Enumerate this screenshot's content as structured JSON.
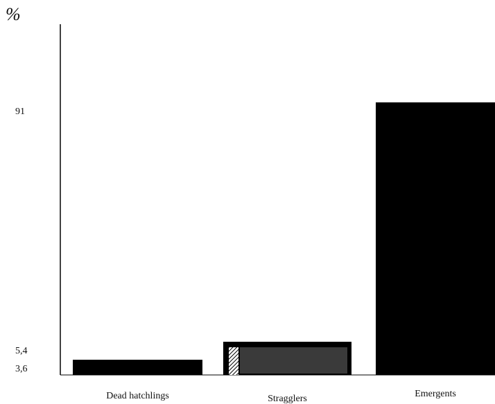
{
  "chart_data": {
    "type": "bar",
    "unit_label": "%",
    "categories": [
      "Dead hatchlings",
      "Stragglers",
      "Emergents"
    ],
    "values": [
      3.6,
      5.4,
      91
    ],
    "y_tick_labels": [
      "91",
      "5,4",
      "3,6"
    ],
    "colors": {
      "bar": "#000000",
      "straggler_texture": "#3a3a3a",
      "axis": "#000000"
    },
    "grid": false,
    "legend": "none"
  }
}
